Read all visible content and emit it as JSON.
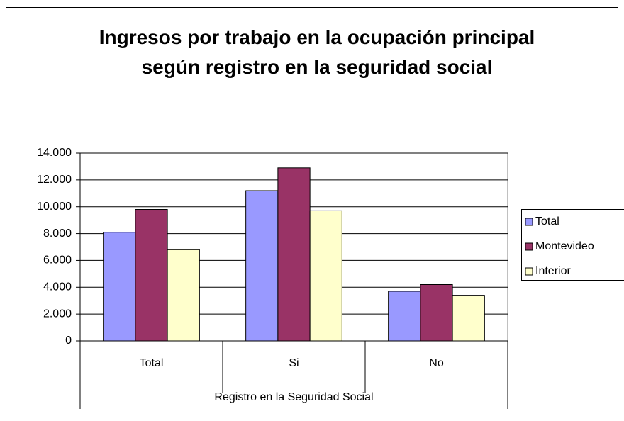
{
  "chart_data": {
    "type": "bar",
    "title": "Ingresos por trabajo en la ocupación principal según registro en la seguridad social",
    "x_label": "Registro en la Seguridad Social",
    "categories": [
      "Total",
      "Si",
      "No"
    ],
    "series": [
      {
        "name": "Total",
        "color": "#9999ff",
        "values": [
          8100,
          11200,
          3700
        ]
      },
      {
        "name": "Montevideo",
        "color": "#993366",
        "values": [
          9800,
          12900,
          4200
        ]
      },
      {
        "name": "Interior",
        "color": "#ffffcc",
        "values": [
          6800,
          9700,
          3400
        ]
      }
    ],
    "ylim": [
      0,
      14000
    ],
    "yticks": [
      0,
      {
        "value": 2000,
        "label": "2.000"
      },
      {
        "value": 4000,
        "label": "4.000"
      },
      {
        "value": 6000,
        "label": "6.000"
      },
      {
        "value": 8000,
        "label": "8.000"
      },
      {
        "value": 10000,
        "label": "10.000"
      },
      {
        "value": 12000,
        "label": "12.000"
      },
      {
        "value": 14000,
        "label": "14.000"
      }
    ],
    "grid": true,
    "legend": "right"
  }
}
